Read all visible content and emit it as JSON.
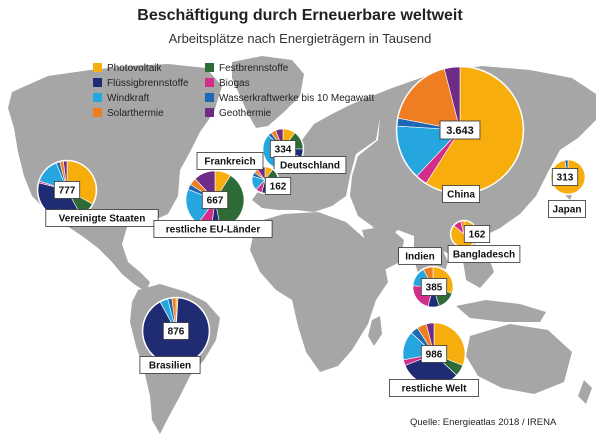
{
  "header": {
    "title": "Beschäftigung durch Erneuerbare weltweit",
    "subtitle": "Arbeitsplätze nach Energieträgern in Tausend"
  },
  "legend": [
    {
      "label": "Photovoltaik",
      "color": "#f7ae0c"
    },
    {
      "label": "Festbrennstoffe",
      "color": "#2e6b37"
    },
    {
      "label": "Flüssigbrennstoffe",
      "color": "#1f2b73"
    },
    {
      "label": "Biogas",
      "color": "#d42e8b"
    },
    {
      "label": "Windkraft",
      "color": "#26a6de"
    },
    {
      "label": "Wasserkraftwerke bis 10 Megawatt",
      "color": "#1d67b5"
    },
    {
      "label": "Solarthermie",
      "color": "#ef7d22"
    },
    {
      "label": "Geothermie",
      "color": "#6e2c86"
    }
  ],
  "regions": [
    {
      "name": "China",
      "value": "3.643",
      "shares": [
        0.59,
        0,
        0,
        0.03,
        0.14,
        0.02,
        0.18,
        0.04
      ]
    },
    {
      "name": "Brasilien",
      "value": "876",
      "shares": [
        0.01,
        0,
        0.91,
        0,
        0.04,
        0.02,
        0.02,
        0
      ]
    },
    {
      "name": "restliche Welt",
      "value": "986",
      "shares": [
        0.31,
        0.06,
        0.32,
        0.03,
        0.15,
        0.04,
        0.05,
        0.04
      ]
    },
    {
      "name": "Vereinigte Staaten",
      "value": "777",
      "shares": [
        0.33,
        0.09,
        0.37,
        0.01,
        0.14,
        0.02,
        0.02,
        0.02
      ]
    },
    {
      "name": "restliche EU-Länder",
      "value": "667",
      "shares": [
        0.09,
        0.38,
        0.05,
        0.08,
        0.21,
        0.03,
        0.04,
        0.12
      ]
    },
    {
      "name": "Indien",
      "value": "385",
      "shares": [
        0.3,
        0.15,
        0.09,
        0.22,
        0.16,
        0,
        0.08,
        0
      ]
    },
    {
      "name": "Deutschland",
      "value": "334",
      "shares": [
        0.1,
        0.15,
        0.07,
        0.12,
        0.43,
        0.03,
        0.04,
        0.06
      ]
    },
    {
      "name": "Japan",
      "value": "313",
      "shares": [
        0.97,
        0,
        0,
        0,
        0,
        0.03,
        0,
        0
      ]
    },
    {
      "name": "Frankreich",
      "value": "162",
      "shares": [
        0.1,
        0.22,
        0.22,
        0.08,
        0.18,
        0.05,
        0.05,
        0.1
      ]
    },
    {
      "name": "Bangladesch",
      "value": "162",
      "shares": [
        0.86,
        0,
        0,
        0.1,
        0,
        0,
        0.04,
        0
      ]
    }
  ],
  "source": "Quelle: Energieatlas 2018 / IRENA"
}
